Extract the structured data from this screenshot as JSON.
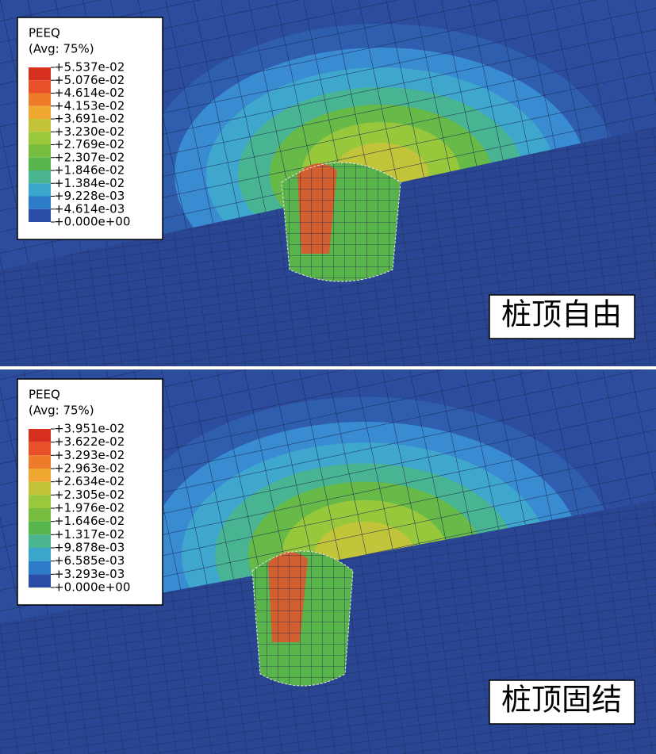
{
  "panels": [
    {
      "legend": {
        "title": "PEEQ",
        "subtitle": "(Avg: 75%)",
        "labels": [
          "+5.537e-02",
          "+5.076e-02",
          "+4.614e-02",
          "+4.153e-02",
          "+3.691e-02",
          "+3.230e-02",
          "+2.769e-02",
          "+2.307e-02",
          "+1.846e-02",
          "+1.384e-02",
          "+9.228e-03",
          "+4.614e-03",
          "+0.000e+00"
        ]
      },
      "caption": "桩顶自由"
    },
    {
      "legend": {
        "title": "PEEQ",
        "subtitle": "(Avg: 75%)",
        "labels": [
          "+3.951e-02",
          "+3.622e-02",
          "+3.293e-02",
          "+2.963e-02",
          "+2.634e-02",
          "+2.305e-02",
          "+1.976e-02",
          "+1.646e-02",
          "+1.317e-02",
          "+9.878e-03",
          "+6.585e-03",
          "+3.293e-03",
          "+0.000e+00"
        ]
      },
      "caption": "桩顶固结"
    }
  ]
}
